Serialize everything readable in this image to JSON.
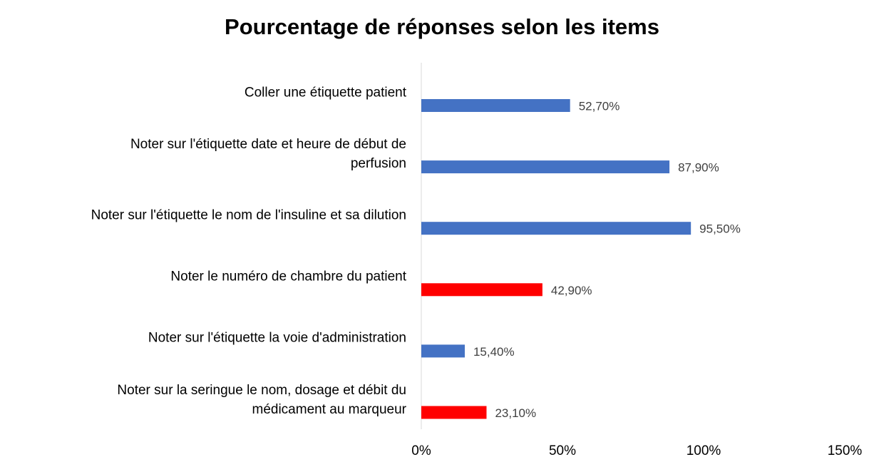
{
  "chart_data": {
    "type": "bar",
    "orientation": "horizontal",
    "title": "Pourcentage de réponses selon les items",
    "categories": [
      "Coller une étiquette patient",
      "Noter sur l'étiquette date et heure de début de\nperfusion",
      "Noter sur l'étiquette le nom de l'insuline et sa dilution",
      "Noter le numéro de chambre du patient",
      "Noter sur l'étiquette la voie d'administration",
      "Noter sur la seringue le nom, dosage et débit du\nmédicament au marqueur"
    ],
    "values": [
      52.7,
      87.9,
      95.5,
      42.9,
      15.4,
      23.1
    ],
    "value_labels": [
      "52,70%",
      "87,90%",
      "95,50%",
      "42,90%",
      "15,40%",
      "23,10%"
    ],
    "colors": [
      "#4472c4",
      "#4472c4",
      "#4472c4",
      "#ff0000",
      "#4472c4",
      "#ff0000"
    ],
    "xlim": [
      0,
      150
    ],
    "xticks": [
      {
        "value": 0,
        "label": "0%"
      },
      {
        "value": 50,
        "label": "50%"
      },
      {
        "value": 100,
        "label": "100%"
      },
      {
        "value": 150,
        "label": "150%"
      }
    ],
    "grid": false
  }
}
